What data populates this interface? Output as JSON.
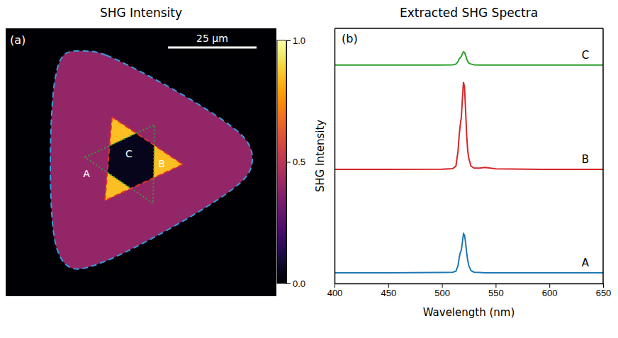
{
  "chart_data": [
    {
      "type": "image",
      "title": "SHG Intensity",
      "panel_label": "(a)",
      "scale_bar": {
        "value": 25,
        "label": "25 µm"
      },
      "regions": [
        {
          "label": "A",
          "intensity": 0.4
        },
        {
          "label": "B",
          "intensity": 0.85
        },
        {
          "label": "C",
          "intensity": 0.05
        }
      ],
      "colorbar": {
        "range": [
          0,
          1
        ],
        "ticks": [
          {
            "value": 0,
            "label": "0.0"
          },
          {
            "value": 0.5,
            "label": "0.5"
          },
          {
            "value": 1,
            "label": "1.0"
          }
        ]
      }
    },
    {
      "type": "line",
      "title": "Extracted SHG Spectra",
      "panel_label": "(b)",
      "x_label": "Wavelength (nm)",
      "y_label": "SHG Intensity",
      "x": [
        400,
        450,
        500,
        510,
        513,
        515,
        516,
        517,
        518,
        519,
        520,
        521,
        522,
        523,
        524,
        525,
        527,
        530,
        535,
        540,
        550,
        600,
        650
      ],
      "series": [
        {
          "name": "A",
          "color": "#1f77b4",
          "values": [
            0.042,
            0.042,
            0.043,
            0.044,
            0.048,
            0.07,
            0.1,
            0.12,
            0.13,
            0.16,
            0.195,
            0.19,
            0.16,
            0.12,
            0.09,
            0.07,
            0.05,
            0.044,
            0.043,
            0.042,
            0.042,
            0.042,
            0.042
          ]
        },
        {
          "name": "B",
          "color": "#d62728",
          "values": [
            0.447,
            0.447,
            0.448,
            0.45,
            0.46,
            0.52,
            0.58,
            0.62,
            0.65,
            0.72,
            0.789,
            0.77,
            0.68,
            0.58,
            0.52,
            0.49,
            0.46,
            0.452,
            0.452,
            0.455,
            0.449,
            0.447,
            0.447
          ]
        },
        {
          "name": "C",
          "color": "#2ca02c",
          "values": [
            0.856,
            0.856,
            0.856,
            0.857,
            0.86,
            0.87,
            0.88,
            0.885,
            0.89,
            0.9,
            0.908,
            0.905,
            0.895,
            0.88,
            0.87,
            0.864,
            0.86,
            0.857,
            0.856,
            0.856,
            0.856,
            0.856,
            0.856
          ]
        }
      ],
      "xlim": [
        400,
        650
      ],
      "xticks": [
        400,
        450,
        500,
        550,
        600,
        650
      ],
      "ylim": [
        0,
        1
      ],
      "tick_labels": "x"
    }
  ]
}
